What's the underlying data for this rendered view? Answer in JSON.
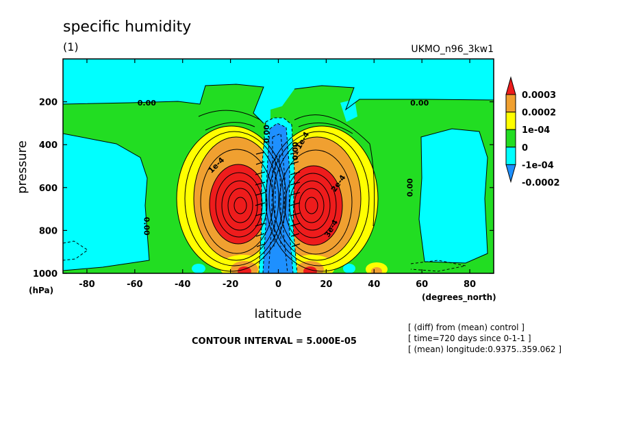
{
  "header": {
    "title": "specific humidity",
    "panel_label": "(1)",
    "dataset": "UKMO_n96_3kw1"
  },
  "footer": {
    "contour_interval": "CONTOUR INTERVAL = 5.000E-05",
    "notes": [
      "[ (diff) from (mean) control ]",
      "[ time=720 days since 0-1-1 ]",
      "[ (mean) longitude:0.9375..359.062 ]"
    ]
  },
  "colors": {
    "red": "#ee1c1c",
    "orange": "#f0a030",
    "yellow": "#ffff00",
    "green": "#22dd22",
    "cyan": "#00ffff",
    "blue": "#1e90ff"
  },
  "chart_data": {
    "type": "heatmap",
    "xlabel": "latitude",
    "ylabel": "pressure",
    "xunits": "(degrees_north)",
    "yunits": "(hPa)",
    "xlim": [
      -90,
      90
    ],
    "ylim": [
      1000,
      0
    ],
    "xticks": [
      -80,
      -60,
      -40,
      -20,
      0,
      20,
      40,
      60,
      80
    ],
    "yticks": [
      200,
      400,
      600,
      800,
      1000
    ],
    "colorbar": {
      "labels": [
        "0.0003",
        "0.0002",
        "1e-04",
        "0",
        "-1e-04",
        "-0.0002"
      ],
      "levels": [
        0.0003,
        0.0002,
        0.0001,
        0,
        -0.0001,
        -0.0002
      ]
    },
    "contour_labels": [
      {
        "text": "0.00",
        "lat": -55,
        "p": 205,
        "rotate": 0
      },
      {
        "text": "0.00",
        "lat": 59,
        "p": 205,
        "rotate": 0
      },
      {
        "text": "0.00",
        "lat": 55,
        "p": 600,
        "rotate": -90
      },
      {
        "text": "0.00",
        "lat": -55,
        "p": 780,
        "rotate": 90
      },
      {
        "text": "1e-4",
        "lat": -26,
        "p": 495,
        "rotate": -45
      },
      {
        "text": "1e-4",
        "lat": 10,
        "p": 380,
        "rotate": -60
      },
      {
        "text": "2e-4",
        "lat": 25,
        "p": 580,
        "rotate": -55
      },
      {
        "text": "3e-4",
        "lat": 22,
        "p": 790,
        "rotate": -60
      },
      {
        "text": "0.00",
        "lat": -5,
        "p": 350,
        "rotate": -90
      },
      {
        "text": "0.00",
        "lat": 7,
        "p": 430,
        "rotate": -90
      }
    ]
  }
}
